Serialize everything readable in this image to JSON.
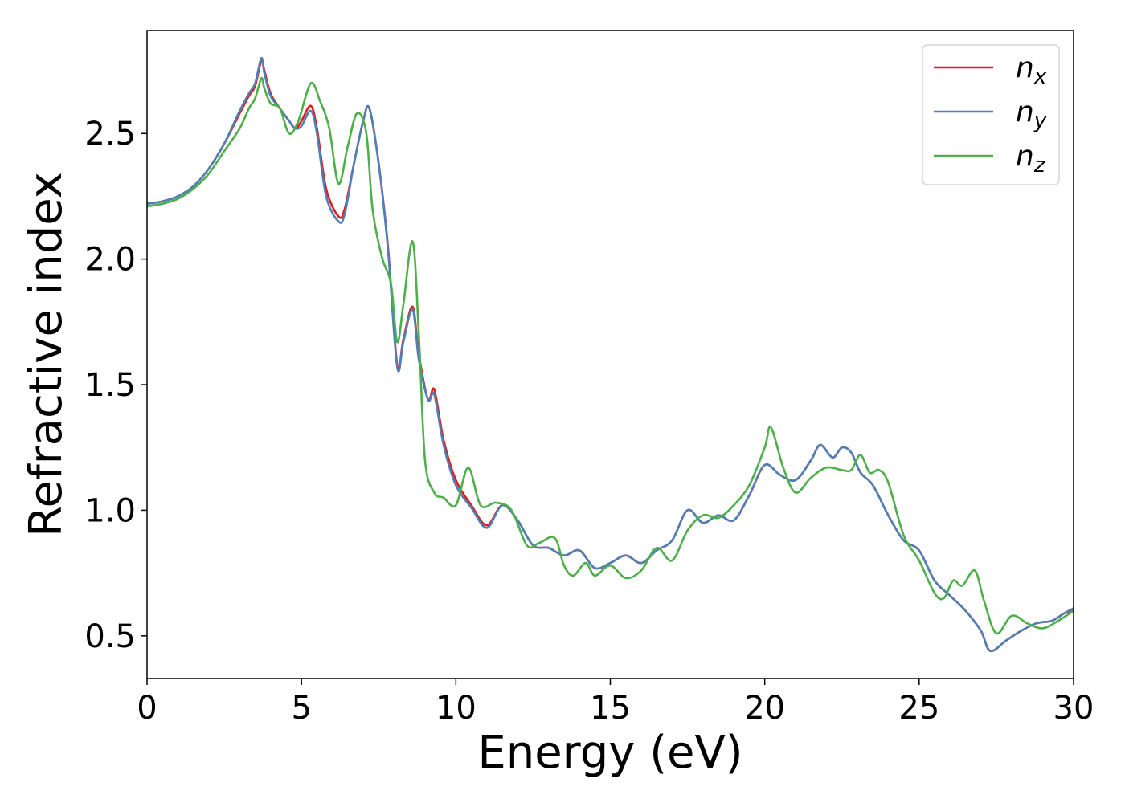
{
  "chart_data": {
    "type": "line",
    "title": "",
    "xlabel": "Energy (eV)",
    "ylabel": "Refractive index",
    "xlim": [
      0,
      30
    ],
    "ylim": [
      0.33,
      2.91
    ],
    "xticks": [
      0,
      5,
      10,
      15,
      20,
      25,
      30
    ],
    "xtick_labels": [
      "0",
      "5",
      "10",
      "15",
      "20",
      "25",
      "30"
    ],
    "yticks": [
      0.5,
      1.0,
      1.5,
      2.0,
      2.5
    ],
    "ytick_labels": [
      "0.5",
      "1.0",
      "1.5",
      "2.0",
      "2.5"
    ],
    "grid": false,
    "legend_position": "top-right",
    "series": [
      {
        "name": "n",
        "subscript": "x",
        "color": "#e41a1c",
        "x": [
          0,
          0.5,
          1,
          1.5,
          2,
          2.5,
          3,
          3.3,
          3.5,
          3.7,
          3.8,
          4,
          4.3,
          4.6,
          4.8,
          5,
          5.3,
          5.5,
          5.8,
          6.2,
          6.4,
          6.7,
          7,
          7.2,
          7.5,
          7.8,
          8.1,
          8.3,
          8.6,
          8.8,
          9.1,
          9.3,
          9.6,
          10,
          10.5,
          11,
          11.5,
          12,
          12.5,
          13,
          13.5,
          14,
          14.5,
          15,
          15.5,
          16,
          16.5,
          17,
          17.5,
          18,
          18.5,
          19,
          19.5,
          20,
          20.5,
          21,
          21.5,
          21.8,
          22.2,
          22.5,
          22.8,
          23.1,
          23.5,
          24,
          24.5,
          25,
          25.5,
          26,
          26.5,
          27,
          27.3,
          27.8,
          28.3,
          28.8,
          29.3,
          29.7,
          30
        ],
        "values": [
          2.22,
          2.23,
          2.25,
          2.29,
          2.36,
          2.46,
          2.58,
          2.65,
          2.69,
          2.79,
          2.75,
          2.66,
          2.6,
          2.55,
          2.52,
          2.55,
          2.61,
          2.52,
          2.28,
          2.17,
          2.2,
          2.38,
          2.55,
          2.6,
          2.38,
          2.05,
          1.58,
          1.68,
          1.81,
          1.62,
          1.44,
          1.48,
          1.28,
          1.12,
          1.02,
          0.94,
          1.02,
          0.96,
          0.86,
          0.85,
          0.82,
          0.84,
          0.77,
          0.79,
          0.82,
          0.79,
          0.84,
          0.88,
          1.0,
          0.95,
          0.98,
          0.96,
          1.06,
          1.18,
          1.14,
          1.12,
          1.2,
          1.26,
          1.21,
          1.25,
          1.23,
          1.15,
          1.1,
          0.98,
          0.88,
          0.84,
          0.72,
          0.66,
          0.6,
          0.52,
          0.44,
          0.48,
          0.52,
          0.55,
          0.56,
          0.59,
          0.6
        ]
      },
      {
        "name": "n",
        "subscript": "y",
        "color": "#4f7fb5",
        "x": [
          0,
          0.5,
          1,
          1.5,
          2,
          2.5,
          3,
          3.3,
          3.5,
          3.7,
          3.8,
          4,
          4.3,
          4.6,
          4.8,
          5,
          5.3,
          5.5,
          5.8,
          6.2,
          6.4,
          6.7,
          7,
          7.2,
          7.5,
          7.8,
          8.1,
          8.3,
          8.6,
          8.8,
          9.1,
          9.3,
          9.6,
          10,
          10.5,
          11,
          11.5,
          12,
          12.5,
          13,
          13.5,
          14,
          14.5,
          15,
          15.5,
          16,
          16.5,
          17,
          17.5,
          18,
          18.5,
          19,
          19.5,
          20,
          20.5,
          21,
          21.5,
          21.8,
          22.2,
          22.5,
          22.8,
          23.1,
          23.5,
          24,
          24.5,
          25,
          25.5,
          26,
          26.5,
          27,
          27.3,
          27.8,
          28.3,
          28.8,
          29.3,
          29.7,
          30
        ],
        "values": [
          2.22,
          2.23,
          2.25,
          2.29,
          2.36,
          2.46,
          2.59,
          2.66,
          2.7,
          2.8,
          2.74,
          2.65,
          2.6,
          2.55,
          2.52,
          2.53,
          2.59,
          2.5,
          2.25,
          2.15,
          2.18,
          2.38,
          2.55,
          2.6,
          2.38,
          2.04,
          1.57,
          1.67,
          1.8,
          1.6,
          1.44,
          1.46,
          1.26,
          1.1,
          1.01,
          0.93,
          1.02,
          0.96,
          0.86,
          0.85,
          0.82,
          0.84,
          0.77,
          0.79,
          0.82,
          0.79,
          0.84,
          0.88,
          1.0,
          0.95,
          0.98,
          0.96,
          1.06,
          1.18,
          1.14,
          1.12,
          1.2,
          1.26,
          1.21,
          1.25,
          1.23,
          1.15,
          1.1,
          0.98,
          0.88,
          0.84,
          0.72,
          0.66,
          0.6,
          0.52,
          0.44,
          0.48,
          0.52,
          0.55,
          0.56,
          0.59,
          0.61
        ]
      },
      {
        "name": "n",
        "subscript": "z",
        "color": "#4daf4a",
        "x": [
          0,
          0.5,
          1,
          1.5,
          2,
          2.5,
          3,
          3.3,
          3.5,
          3.7,
          3.8,
          4,
          4.3,
          4.6,
          4.9,
          5.3,
          5.6,
          5.9,
          6.2,
          6.5,
          6.8,
          7.1,
          7.3,
          7.6,
          7.9,
          8.1,
          8.3,
          8.6,
          8.8,
          9.0,
          9.3,
          9.6,
          10,
          10.4,
          10.8,
          11.3,
          11.8,
          12.3,
          12.7,
          13.2,
          13.5,
          13.8,
          14.2,
          14.5,
          15,
          15.5,
          16,
          16.5,
          17,
          17.5,
          18,
          18.5,
          19,
          19.5,
          20,
          20.2,
          20.6,
          21,
          21.5,
          22,
          22.5,
          22.8,
          23.1,
          23.4,
          23.7,
          24,
          24.5,
          25,
          25.5,
          25.8,
          26.1,
          26.4,
          26.8,
          27.1,
          27.5,
          28,
          28.5,
          29,
          29.5,
          30
        ],
        "values": [
          2.21,
          2.22,
          2.24,
          2.28,
          2.34,
          2.43,
          2.52,
          2.6,
          2.64,
          2.72,
          2.68,
          2.62,
          2.6,
          2.5,
          2.55,
          2.7,
          2.63,
          2.52,
          2.3,
          2.45,
          2.58,
          2.5,
          2.2,
          2.01,
          1.9,
          1.67,
          1.82,
          2.07,
          1.7,
          1.2,
          1.07,
          1.05,
          1.02,
          1.17,
          1.02,
          1.03,
          1.0,
          0.86,
          0.87,
          0.89,
          0.78,
          0.74,
          0.79,
          0.74,
          0.78,
          0.73,
          0.76,
          0.85,
          0.8,
          0.92,
          0.98,
          0.97,
          1.02,
          1.1,
          1.25,
          1.33,
          1.17,
          1.07,
          1.13,
          1.17,
          1.16,
          1.16,
          1.22,
          1.15,
          1.16,
          1.11,
          0.9,
          0.8,
          0.67,
          0.65,
          0.72,
          0.7,
          0.76,
          0.64,
          0.51,
          0.58,
          0.55,
          0.53,
          0.56,
          0.6
        ]
      }
    ]
  }
}
